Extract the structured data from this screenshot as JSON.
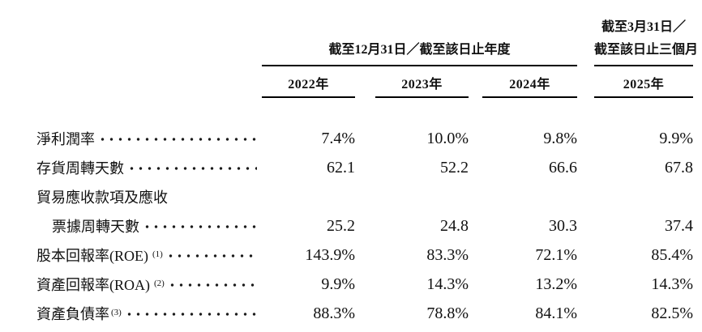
{
  "table": {
    "group_header_annual": "截至12月31日／截至該日止年度",
    "group_header_quarter_line1": "截至3月31日／",
    "group_header_quarter_line2": "截至該日止三個月",
    "year_columns": [
      "2022年",
      "2023年",
      "2024年",
      "2025年"
    ],
    "rows": [
      {
        "label": "淨利潤率",
        "sup": "",
        "sup_gap": false,
        "indent": false,
        "dots": true,
        "values": [
          "7.4%",
          "10.0%",
          "9.8%",
          "9.9%"
        ]
      },
      {
        "label": "存貨周轉天數",
        "sup": "",
        "sup_gap": false,
        "indent": false,
        "dots": true,
        "values": [
          "62.1",
          "52.2",
          "66.6",
          "67.8"
        ]
      },
      {
        "label": "貿易應收款項及應收",
        "sup": "",
        "sup_gap": false,
        "indent": false,
        "dots": false,
        "values": [
          "",
          "",
          "",
          ""
        ]
      },
      {
        "label": "票據周轉天數",
        "sup": "",
        "sup_gap": false,
        "indent": true,
        "dots": true,
        "values": [
          "25.2",
          "24.8",
          "30.3",
          "37.4"
        ]
      },
      {
        "label": "股本回報率(ROE)",
        "sup": "(1)",
        "sup_gap": true,
        "indent": false,
        "dots": true,
        "values": [
          "143.9%",
          "83.3%",
          "72.1%",
          "85.4%"
        ]
      },
      {
        "label": "資產回報率(ROA)",
        "sup": "(2)",
        "sup_gap": true,
        "indent": false,
        "dots": true,
        "values": [
          "9.9%",
          "14.3%",
          "13.2%",
          "14.3%"
        ]
      },
      {
        "label": "資產負債率",
        "sup": "(3)",
        "sup_gap": false,
        "indent": false,
        "dots": true,
        "values": [
          "88.3%",
          "78.8%",
          "84.1%",
          "82.5%"
        ]
      }
    ]
  }
}
